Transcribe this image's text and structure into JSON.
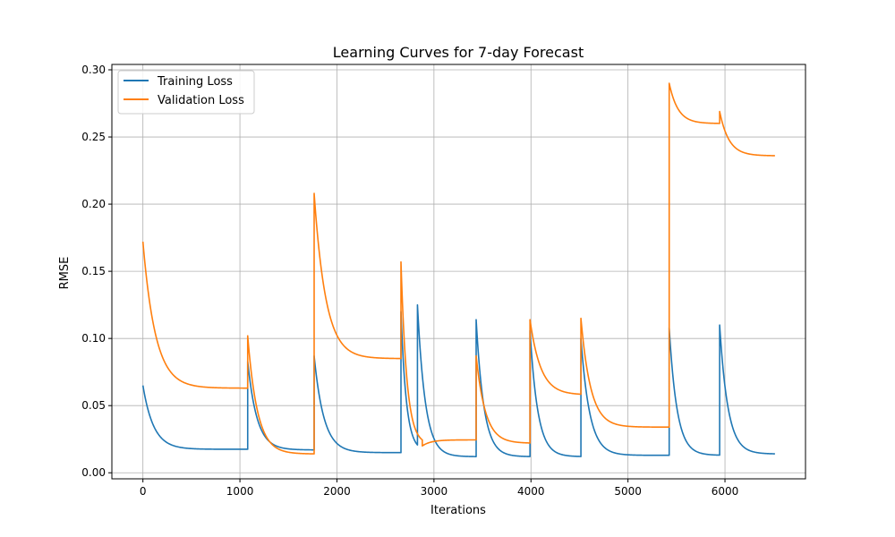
{
  "chart_data": {
    "type": "line",
    "title": "Learning Curves for 7-day Forecast",
    "xlabel": "Iterations",
    "ylabel": "RMSE",
    "xlim": [
      -320,
      6830
    ],
    "ylim": [
      -0.0045,
      0.304
    ],
    "xticks": [
      0,
      1000,
      2000,
      3000,
      4000,
      5000,
      6000
    ],
    "xtick_labels": [
      "0",
      "1000",
      "2000",
      "3000",
      "4000",
      "5000",
      "6000"
    ],
    "yticks": [
      0.0,
      0.05,
      0.1,
      0.15,
      0.2,
      0.25,
      0.3
    ],
    "ytick_labels": [
      "0.00",
      "0.05",
      "0.10",
      "0.15",
      "0.20",
      "0.25",
      "0.30"
    ],
    "grid": true,
    "legend": {
      "position": "upper left",
      "entries": [
        "Training Loss",
        "Validation Loss"
      ]
    },
    "series": [
      {
        "name": "Training Loss",
        "color": "#1f77b4",
        "segments": [
          {
            "x_start": 0,
            "x_end": 1080,
            "start": 0.065,
            "end": 0.0175,
            "tau": 110
          },
          {
            "x_start": 1080,
            "x_end": 1765,
            "start": 0.083,
            "end": 0.017,
            "tau": 95
          },
          {
            "x_start": 1765,
            "x_end": 2660,
            "start": 0.087,
            "end": 0.015,
            "tau": 100
          },
          {
            "x_start": 2660,
            "x_end": 2830,
            "start": 0.12,
            "end": 0.016,
            "tau": 55
          },
          {
            "x_start": 2830,
            "x_end": 3435,
            "start": 0.125,
            "end": 0.012,
            "tau": 80
          },
          {
            "x_start": 3435,
            "x_end": 3990,
            "start": 0.114,
            "end": 0.012,
            "tau": 80
          },
          {
            "x_start": 3990,
            "x_end": 4515,
            "start": 0.106,
            "end": 0.012,
            "tau": 80
          },
          {
            "x_start": 4515,
            "x_end": 5425,
            "start": 0.1,
            "end": 0.013,
            "tau": 90
          },
          {
            "x_start": 5425,
            "x_end": 5945,
            "start": 0.108,
            "end": 0.013,
            "tau": 80
          },
          {
            "x_start": 5945,
            "x_end": 6515,
            "start": 0.11,
            "end": 0.014,
            "tau": 85
          }
        ]
      },
      {
        "name": "Validation Loss",
        "color": "#ff7f0e",
        "segments": [
          {
            "x_start": 0,
            "x_end": 1080,
            "start": 0.172,
            "end": 0.063,
            "tau": 130
          },
          {
            "x_start": 1080,
            "x_end": 1765,
            "start": 0.102,
            "end": 0.014,
            "tau": 100
          },
          {
            "x_start": 1765,
            "x_end": 2660,
            "start": 0.208,
            "end": 0.085,
            "tau": 120
          },
          {
            "x_start": 2660,
            "x_end": 2880,
            "start": 0.157,
            "end": 0.021,
            "tau": 60
          },
          {
            "x_start": 2880,
            "x_end": 3435,
            "start": 0.02,
            "end": 0.0245,
            "tau": 90
          },
          {
            "x_start": 3435,
            "x_end": 3990,
            "start": 0.087,
            "end": 0.022,
            "tau": 95
          },
          {
            "x_start": 3990,
            "x_end": 4515,
            "start": 0.114,
            "end": 0.058,
            "tau": 110
          },
          {
            "x_start": 4515,
            "x_end": 5425,
            "start": 0.115,
            "end": 0.034,
            "tau": 100
          },
          {
            "x_start": 5425,
            "x_end": 5945,
            "start": 0.29,
            "end": 0.26,
            "tau": 90
          },
          {
            "x_start": 5945,
            "x_end": 6515,
            "start": 0.269,
            "end": 0.236,
            "tau": 95
          }
        ]
      }
    ]
  }
}
